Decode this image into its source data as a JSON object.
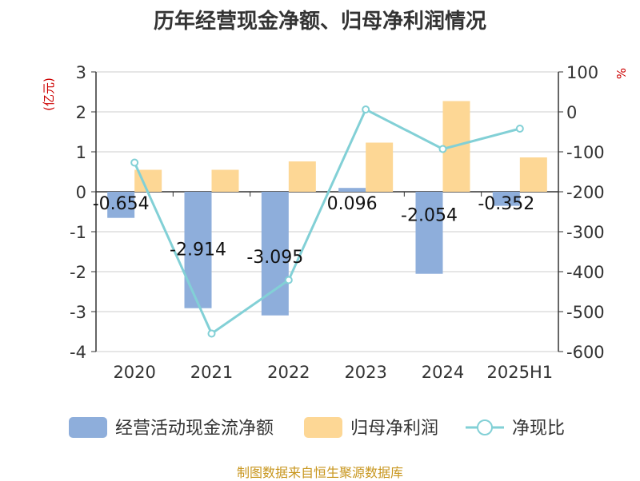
{
  "title": "历年经营现金净额、归母净利润情况",
  "source": "制图数据来自恒生聚源数据库",
  "chart_data": {
    "type": "bar",
    "categories": [
      "2020",
      "2021",
      "2022",
      "2023",
      "2024",
      "2025H1"
    ],
    "series": [
      {
        "name": "经营活动现金流净额",
        "kind": "bar",
        "axis": "left",
        "color": "#8eaedb",
        "values": [
          -0.654,
          -2.914,
          -3.095,
          0.096,
          -2.054,
          -0.352
        ]
      },
      {
        "name": "归母净利润",
        "kind": "bar",
        "axis": "left",
        "color": "#fdd795",
        "values": [
          0.55,
          0.55,
          0.76,
          1.23,
          2.27,
          0.86
        ]
      },
      {
        "name": "净现比",
        "kind": "line",
        "axis": "right",
        "color": "#82d0d6",
        "values": [
          -127,
          -555,
          -421,
          6,
          -93,
          -42
        ]
      }
    ],
    "data_labels": [
      "-0.654",
      "-2.914",
      "-3.095",
      "0.096",
      "-2.054",
      "-0.352"
    ],
    "y_left": {
      "label": "(亿元)",
      "ylim": [
        -4,
        3
      ],
      "ticks": [
        "3",
        "2",
        "1",
        "0",
        "-1",
        "-2",
        "-3",
        "-4"
      ]
    },
    "y_right": {
      "label": "%",
      "ylim": [
        -600,
        100
      ],
      "ticks": [
        "100",
        "0",
        "-100",
        "-200",
        "-300",
        "-400",
        "-500",
        "-600"
      ]
    },
    "grid": true,
    "legend_position": "bottom"
  }
}
